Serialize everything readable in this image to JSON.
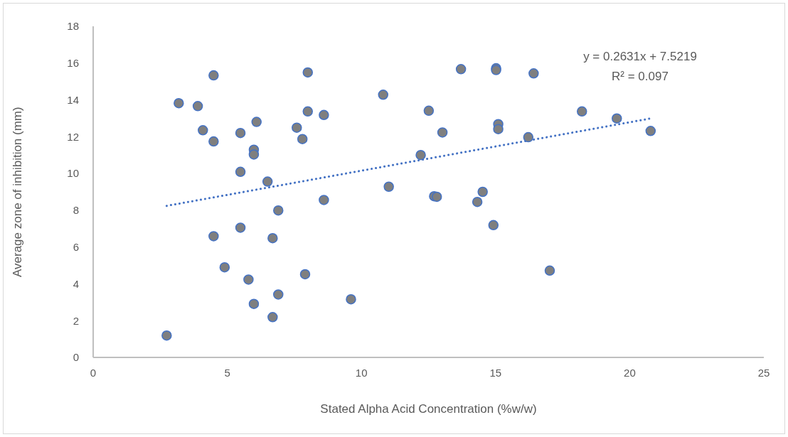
{
  "chart_data": {
    "type": "scatter",
    "xlabel": "Stated Alpha Acid Concentration (%w/w)",
    "ylabel": "Average zone of inhibition (mm)",
    "xlim": [
      0,
      25
    ],
    "xticks": [
      0,
      5,
      10,
      15,
      20,
      25
    ],
    "ylim": [
      0,
      18
    ],
    "yticks": [
      0,
      2,
      4,
      6,
      8,
      10,
      12,
      14,
      16,
      18
    ],
    "grid": false,
    "marker": "circle",
    "annotations": [
      "y = 0.2631x + 7.5219",
      "R² = 0.097"
    ],
    "series": [
      {
        "color": "#7f7f7f",
        "x": [
          3.19,
          3.9,
          4.49,
          4.09,
          4.49,
          5.49,
          6.09,
          5.99,
          5.99,
          5.49,
          6.5,
          6.9,
          8.0,
          8.0,
          8.6,
          7.59,
          7.8,
          8.6,
          5.49,
          4.49,
          6.69,
          4.9,
          5.79,
          7.9,
          6.9,
          5.99,
          6.69,
          9.61,
          2.74,
          10.81,
          13.71,
          15.02,
          15.02,
          16.42,
          12.51,
          13.02,
          15.1,
          15.1,
          18.22,
          19.52,
          20.78,
          16.22,
          12.21,
          11.02,
          12.71,
          12.81,
          14.52,
          14.32,
          14.92,
          17.02
        ],
        "values": [
          13.82,
          13.66,
          15.33,
          12.35,
          11.74,
          12.2,
          12.8,
          11.29,
          11.03,
          10.09,
          9.56,
          7.99,
          15.49,
          13.37,
          13.18,
          12.49,
          11.87,
          8.56,
          7.05,
          6.59,
          6.48,
          4.9,
          4.23,
          4.52,
          3.42,
          2.91,
          2.19,
          3.16,
          1.19,
          14.28,
          15.67,
          15.72,
          15.62,
          15.44,
          13.41,
          12.23,
          12.68,
          12.41,
          13.37,
          12.99,
          12.31,
          11.97,
          11.0,
          9.28,
          8.76,
          8.73,
          9.0,
          8.45,
          7.19,
          4.72
        ]
      },
      {
        "type": "line",
        "color": "#4472c4",
        "line_style": "dotted",
        "marker": "none",
        "x": [
          2.74,
          20.78
        ],
        "values": [
          8.24,
          12.99
        ]
      }
    ]
  }
}
